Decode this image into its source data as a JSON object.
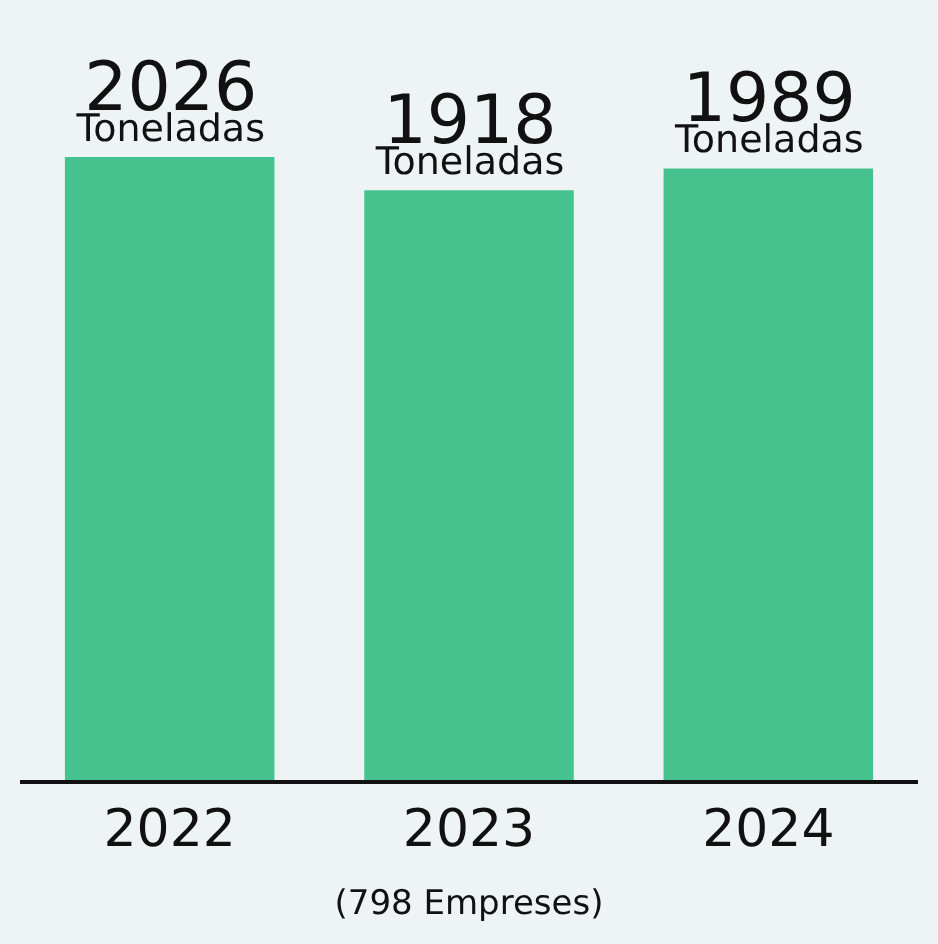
{
  "chart_data": {
    "type": "bar",
    "categories": [
      "2022",
      "2023\n(798 Empreses)",
      "2024"
    ],
    "values": [
      2026,
      1918,
      1989
    ],
    "color": "#46c28e",
    "value_labels": [
      "2026\nToneladas",
      "1918\nToneladas",
      "1989\nToneladas"
    ],
    "grid": false,
    "legend": false
  }
}
